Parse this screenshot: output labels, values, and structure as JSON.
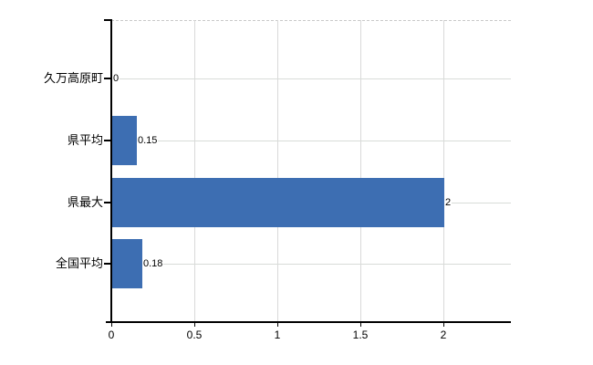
{
  "chart_data": {
    "type": "bar",
    "orientation": "horizontal",
    "title": "",
    "categories": [
      "久万高原町",
      "県平均",
      "県最大",
      "全国平均"
    ],
    "values": [
      0,
      0.15,
      2,
      0.18
    ],
    "value_labels": [
      "0",
      "0.15",
      "2",
      "0.18"
    ],
    "x_ticks": [
      0,
      0.5,
      1,
      1.5,
      2
    ],
    "x_tick_labels": [
      "0",
      "0.5",
      "1",
      "1.5",
      "2"
    ],
    "xlim": [
      0,
      2.4
    ],
    "grid": true,
    "legend": "none",
    "colors": {
      "bar": "#3d6eb2",
      "gridline": "#d9d9d9",
      "axis": "#000000",
      "text": "#000000",
      "background": "#ffffff"
    }
  }
}
